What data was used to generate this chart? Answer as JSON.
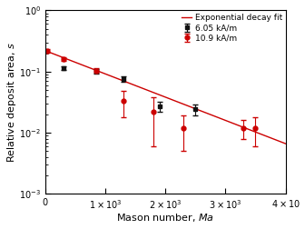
{
  "title": "",
  "xlabel": "Mason number, $Ma$",
  "ylabel": "Relative deposit area, $s$",
  "xlim": [
    0,
    4000
  ],
  "ylim_low": 0.001,
  "ylim_high": 1.0,
  "black_x": [
    300,
    850,
    1300,
    1900,
    2500
  ],
  "black_y": [
    0.115,
    0.102,
    0.075,
    0.027,
    0.024
  ],
  "black_yerr": [
    0.008,
    0.008,
    0.008,
    0.005,
    0.005
  ],
  "red_x": [
    30,
    300,
    850,
    1300,
    1800,
    2300,
    3300,
    3500
  ],
  "red_y": [
    0.22,
    0.16,
    0.104,
    0.033,
    0.022,
    0.012,
    0.012,
    0.012
  ],
  "red_yerr_low": [
    0.015,
    0.012,
    0.008,
    0.015,
    0.016,
    0.007,
    0.004,
    0.006
  ],
  "red_yerr_high": [
    0.015,
    0.012,
    0.008,
    0.015,
    0.016,
    0.007,
    0.004,
    0.006
  ],
  "fit_a": 0.22,
  "fit_b": 0.000875,
  "legend_labels": [
    "6.05 kA/m",
    "10.9 kA/m",
    "Exponential decay fit"
  ],
  "black_color": "#111111",
  "red_color": "#cc0000",
  "fit_color": "#cc0000",
  "marker_size": 3.5,
  "tick_label_size": 7,
  "axis_label_size": 8,
  "legend_fontsize": 6.5
}
